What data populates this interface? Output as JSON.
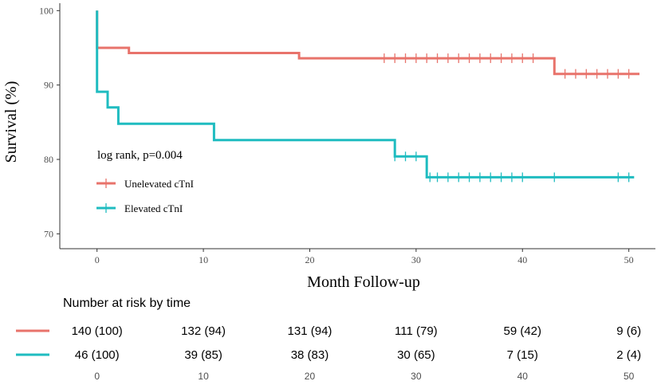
{
  "chart_data": {
    "type": "line",
    "subtype": "kaplan-meier",
    "title": "",
    "xlabel": "Month Follow-up",
    "ylabel": "Survival (%)",
    "xlim": [
      -3.5,
      52.5
    ],
    "ylim": [
      68,
      101
    ],
    "x_ticks": [
      0,
      10,
      20,
      30,
      40,
      50
    ],
    "y_ticks": [
      70,
      80,
      90,
      100
    ],
    "legend_title": "log rank, p=0.004",
    "legend_position": "left-middle",
    "series": [
      {
        "name": "Unelevated cTnI",
        "color": "#E8736B",
        "steps": [
          [
            0,
            100
          ],
          [
            0,
            95.0
          ],
          [
            3,
            95.0
          ],
          [
            3,
            94.3
          ],
          [
            19,
            94.3
          ],
          [
            19,
            93.6
          ],
          [
            43,
            93.6
          ],
          [
            43,
            91.5
          ],
          [
            51,
            91.5
          ]
        ],
        "censor_x": [
          27,
          28,
          29,
          30,
          31,
          32,
          33,
          34,
          35,
          36,
          37,
          38,
          39,
          40,
          41,
          44,
          45,
          46,
          47,
          48,
          49,
          50
        ]
      },
      {
        "name": "Elevated cTnI",
        "color": "#1FBCC0",
        "steps": [
          [
            0,
            100
          ],
          [
            0,
            89.1
          ],
          [
            1,
            89.1
          ],
          [
            1,
            87.0
          ],
          [
            2,
            87.0
          ],
          [
            2,
            84.8
          ],
          [
            11,
            84.8
          ],
          [
            11,
            82.6
          ],
          [
            28,
            82.6
          ],
          [
            28,
            80.4
          ],
          [
            31,
            80.4
          ],
          [
            31,
            77.6
          ],
          [
            50.5,
            77.6
          ]
        ],
        "censor_x": [
          28,
          29,
          30,
          31.3,
          32,
          33,
          34,
          35,
          36,
          37,
          38,
          39,
          40,
          43,
          49,
          50
        ]
      }
    ]
  },
  "risk_table": {
    "title": "Number at risk by time",
    "times": [
      "0",
      "10",
      "20",
      "30",
      "40",
      "50"
    ],
    "rows": [
      {
        "name": "Unelevated cTnI",
        "color": "#E8736B",
        "cells": [
          "140 (100)",
          "132 (94)",
          "131 (94)",
          "111 (79)",
          "59 (42)",
          "9 (6)"
        ]
      },
      {
        "name": "Elevated cTnI",
        "color": "#1FBCC0",
        "cells": [
          "46 (100)",
          "39 (85)",
          "38 (83)",
          "30 (65)",
          "7 (15)",
          "2 (4)"
        ]
      }
    ]
  }
}
